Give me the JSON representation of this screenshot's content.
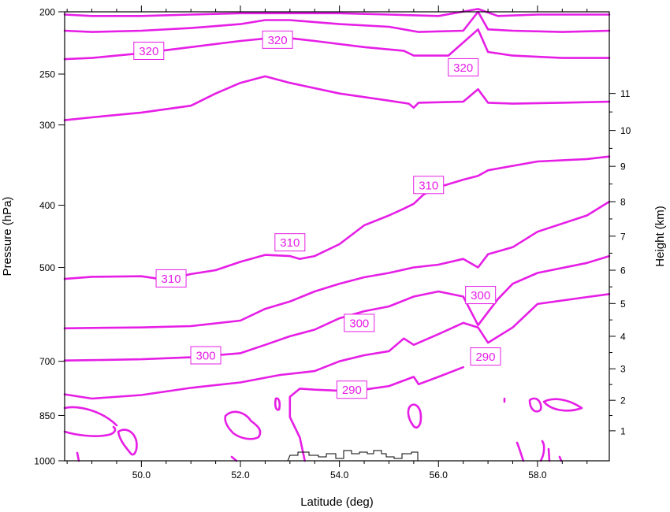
{
  "chart_data": {
    "type": "line",
    "xlabel": "Latitude (deg)",
    "ylabel": "Pressure (hPa)",
    "y2label": "Height (km)",
    "xlim": [
      48.45,
      59.45
    ],
    "ylim": [
      1000,
      200
    ],
    "yscale": "log",
    "x_ticks": [
      {
        "v": 50.0,
        "label": "50.0"
      },
      {
        "v": 52.0,
        "label": "52.0"
      },
      {
        "v": 54.0,
        "label": "54.0"
      },
      {
        "v": 56.0,
        "label": "56.0"
      },
      {
        "v": 58.0,
        "label": "58.0"
      }
    ],
    "y_ticks": [
      {
        "v": 200,
        "label": "200"
      },
      {
        "v": 250,
        "label": "250"
      },
      {
        "v": 300,
        "label": "300"
      },
      {
        "v": 400,
        "label": "400"
      },
      {
        "v": 500,
        "label": "500"
      },
      {
        "v": 700,
        "label": "700"
      },
      {
        "v": 850,
        "label": "850"
      },
      {
        "v": 1000,
        "label": "1000"
      }
    ],
    "height_ticks": [
      {
        "p": 898,
        "label": "1"
      },
      {
        "p": 805,
        "label": "2"
      },
      {
        "p": 719,
        "label": "3"
      },
      {
        "p": 640,
        "label": "4"
      },
      {
        "p": 569,
        "label": "5"
      },
      {
        "p": 505,
        "label": "6"
      },
      {
        "p": 447,
        "label": "7"
      },
      {
        "p": 395,
        "label": "8"
      },
      {
        "p": 348,
        "label": "9"
      },
      {
        "p": 306,
        "label": "10"
      },
      {
        "p": 268,
        "label": "11"
      }
    ],
    "contour_color": "#e61ee6",
    "terrain_color": "#000000",
    "contours": [
      {
        "points": [
          [
            48.45,
            202
          ],
          [
            49,
            203
          ],
          [
            50,
            203
          ],
          [
            51,
            202
          ],
          [
            52,
            201
          ],
          [
            53,
            201
          ],
          [
            54,
            201
          ],
          [
            55,
            202
          ],
          [
            56,
            203
          ],
          [
            56.8,
            198
          ],
          [
            57.2,
            203
          ],
          [
            58,
            202
          ],
          [
            59.45,
            202
          ]
        ]
      },
      {
        "points": [
          [
            48.45,
            214
          ],
          [
            49,
            215
          ],
          [
            50,
            214
          ],
          [
            51,
            212
          ],
          [
            52,
            209
          ],
          [
            52.5,
            206
          ],
          [
            53,
            206
          ],
          [
            54,
            209
          ],
          [
            55,
            211
          ],
          [
            55.6,
            215
          ],
          [
            56.5,
            214
          ],
          [
            56.8,
            200
          ],
          [
            57,
            213
          ],
          [
            57.5,
            214
          ],
          [
            58.5,
            215
          ],
          [
            59.45,
            214
          ]
        ]
      },
      {
        "points": [
          [
            48.45,
            237
          ],
          [
            49,
            236
          ],
          [
            50,
            232
          ],
          [
            51,
            227
          ],
          [
            52,
            222
          ],
          [
            52.8,
            219
          ],
          [
            53.5,
            222
          ],
          [
            54.5,
            227
          ],
          [
            55.3,
            230
          ],
          [
            55.5,
            234
          ],
          [
            56.2,
            234
          ],
          [
            56.8,
            213
          ],
          [
            57,
            231
          ],
          [
            57.5,
            234
          ],
          [
            58.5,
            236
          ],
          [
            59.45,
            236
          ]
        ]
      },
      {
        "points": [
          [
            48.45,
            295
          ],
          [
            49,
            292
          ],
          [
            50,
            287
          ],
          [
            51,
            280
          ],
          [
            51.5,
            268
          ],
          [
            52,
            258
          ],
          [
            52.5,
            252
          ],
          [
            53,
            258
          ],
          [
            54,
            268
          ],
          [
            55,
            275
          ],
          [
            55.4,
            278
          ],
          [
            55.5,
            282
          ],
          [
            55.6,
            277
          ],
          [
            56.5,
            276
          ],
          [
            56.8,
            264
          ],
          [
            57,
            277
          ],
          [
            57.5,
            278
          ],
          [
            58.5,
            277
          ],
          [
            59.45,
            276
          ]
        ]
      },
      {
        "points": [
          [
            48.45,
            521
          ],
          [
            49,
            517
          ],
          [
            50,
            516
          ],
          [
            50.5,
            523
          ],
          [
            51,
            512
          ],
          [
            51.5,
            505
          ],
          [
            52,
            490
          ],
          [
            52.5,
            478
          ],
          [
            53,
            480
          ],
          [
            53.2,
            485
          ],
          [
            53.5,
            480
          ],
          [
            54,
            460
          ],
          [
            54.5,
            430
          ],
          [
            55,
            415
          ],
          [
            55.3,
            405
          ],
          [
            55.5,
            398
          ],
          [
            55.7,
            385
          ],
          [
            56,
            375
          ],
          [
            56.5,
            365
          ],
          [
            56.8,
            360
          ],
          [
            57,
            353
          ],
          [
            58,
            342
          ],
          [
            59,
            339
          ],
          [
            59.45,
            336
          ]
        ]
      },
      {
        "points": [
          [
            48.45,
            622
          ],
          [
            49,
            621
          ],
          [
            50,
            620
          ],
          [
            51,
            617
          ],
          [
            52,
            605
          ],
          [
            52.5,
            580
          ],
          [
            53,
            565
          ],
          [
            53.5,
            545
          ],
          [
            54,
            530
          ],
          [
            54.5,
            518
          ],
          [
            55,
            510
          ],
          [
            55.5,
            500
          ],
          [
            56,
            495
          ],
          [
            56.5,
            485
          ],
          [
            56.8,
            500
          ],
          [
            57,
            477
          ],
          [
            57.5,
            465
          ],
          [
            58,
            440
          ],
          [
            59,
            415
          ],
          [
            59.45,
            395
          ]
        ]
      },
      {
        "points": [
          [
            48.45,
            698
          ],
          [
            49,
            697
          ],
          [
            50,
            695
          ],
          [
            51,
            690
          ],
          [
            52,
            680
          ],
          [
            52.5,
            660
          ],
          [
            53,
            640
          ],
          [
            53.5,
            625
          ],
          [
            54,
            600
          ],
          [
            54.5,
            585
          ],
          [
            55,
            575
          ],
          [
            55.5,
            555
          ],
          [
            56,
            545
          ],
          [
            56.5,
            555
          ],
          [
            56.8,
            615
          ],
          [
            57.2,
            560
          ],
          [
            57.5,
            530
          ],
          [
            58,
            510
          ],
          [
            59,
            492
          ],
          [
            59.45,
            480
          ]
        ]
      },
      {
        "points": [
          [
            48.45,
            788
          ],
          [
            49,
            800
          ],
          [
            50,
            790
          ],
          [
            51,
            770
          ],
          [
            52,
            755
          ],
          [
            52.8,
            735
          ],
          [
            53.5,
            725
          ],
          [
            54,
            700
          ],
          [
            54.5,
            685
          ],
          [
            55,
            675
          ],
          [
            55.3,
            645
          ],
          [
            55.5,
            660
          ],
          [
            56,
            635
          ],
          [
            56.5,
            610
          ],
          [
            56.8,
            620
          ],
          [
            57,
            655
          ],
          [
            57.5,
            620
          ],
          [
            58,
            570
          ],
          [
            59,
            556
          ],
          [
            59.45,
            550
          ]
        ]
      },
      {
        "points": [
          [
            53.3,
            1000
          ],
          [
            53.2,
            920
          ],
          [
            53.0,
            855
          ],
          [
            53.0,
            795
          ],
          [
            53.2,
            772
          ],
          [
            53.5,
            775
          ],
          [
            54,
            778
          ],
          [
            54.5,
            775
          ],
          [
            55,
            765
          ],
          [
            55.5,
            740
          ],
          [
            55.6,
            760
          ],
          [
            56,
            740
          ],
          [
            56.5,
            715
          ]
        ]
      }
    ],
    "labels": [
      {
        "x": 50.15,
        "p": 230,
        "text": "320"
      },
      {
        "x": 52.75,
        "p": 221,
        "text": "320"
      },
      {
        "x": 56.5,
        "p": 244,
        "text": "320"
      },
      {
        "x": 55.8,
        "p": 372,
        "text": "310"
      },
      {
        "x": 53.0,
        "p": 457,
        "text": "310"
      },
      {
        "x": 50.6,
        "p": 520,
        "text": "310"
      },
      {
        "x": 56.85,
        "p": 552,
        "text": "300"
      },
      {
        "x": 54.4,
        "p": 610,
        "text": "300"
      },
      {
        "x": 51.3,
        "p": 685,
        "text": "300"
      },
      {
        "x": 56.95,
        "p": 688,
        "text": "290"
      },
      {
        "x": 54.25,
        "p": 775,
        "text": "290"
      }
    ]
  }
}
